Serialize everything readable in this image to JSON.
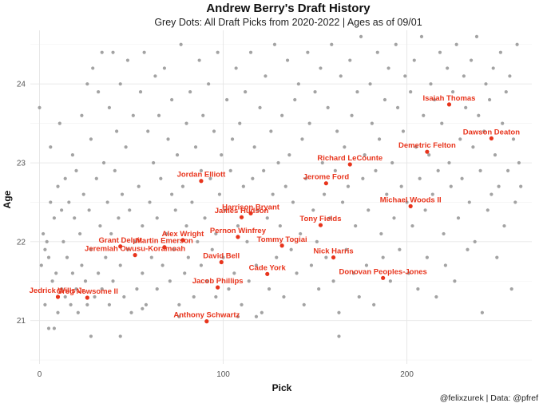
{
  "chart_data": {
    "type": "scatter",
    "title": "Andrew Berry's Draft History",
    "subtitle": "Grey Dots: All Draft Picks from 2020-2022 | Ages as of 09/01",
    "xlabel": "Pick",
    "ylabel": "Age",
    "caption": "@felixzurek | Data: @pfref",
    "xlim": [
      -5,
      268
    ],
    "ylim": [
      20.45,
      24.68
    ],
    "xticks": [
      0,
      100,
      200
    ],
    "yticks": [
      21,
      22,
      23,
      24
    ],
    "grid": true,
    "background_color": "#999999",
    "highlight_color": "#e8341c",
    "background_points": [
      [
        0,
        23.7
      ],
      [
        1,
        21.7
      ],
      [
        2,
        22.1
      ],
      [
        3,
        21.9
      ],
      [
        3,
        21.2
      ],
      [
        4,
        22
      ],
      [
        5,
        20.9
      ],
      [
        5,
        21.8
      ],
      [
        6,
        23.2
      ],
      [
        6,
        22.5
      ],
      [
        7,
        21.5
      ],
      [
        8,
        20.9
      ],
      [
        8,
        22.3
      ],
      [
        9,
        21.6
      ],
      [
        10,
        22.7
      ],
      [
        10,
        21.1
      ],
      [
        11,
        23.5
      ],
      [
        12,
        22.4
      ],
      [
        12,
        21.4
      ],
      [
        13,
        22
      ],
      [
        14,
        21.3
      ],
      [
        14,
        22.8
      ],
      [
        15,
        21.8
      ],
      [
        16,
        22.5
      ],
      [
        17,
        21.2
      ],
      [
        18,
        23.1
      ],
      [
        18,
        21.6
      ],
      [
        19,
        22.3
      ],
      [
        20,
        21.4
      ],
      [
        20,
        22.9
      ],
      [
        21,
        21.1
      ],
      [
        22,
        22.1
      ],
      [
        23,
        21.7
      ],
      [
        23,
        23.6
      ],
      [
        24,
        22.6
      ],
      [
        25,
        21.5
      ],
      [
        26,
        24
      ],
      [
        26,
        21.2
      ],
      [
        27,
        22.4
      ],
      [
        28,
        23.3
      ],
      [
        28,
        21.9
      ],
      [
        29,
        24.2
      ],
      [
        30,
        21.3
      ],
      [
        31,
        22.8
      ],
      [
        32,
        21.6
      ],
      [
        32,
        23.9
      ],
      [
        33,
        22.2
      ],
      [
        34,
        21.4
      ],
      [
        34,
        24.4
      ],
      [
        35,
        23
      ],
      [
        36,
        21.8
      ],
      [
        37,
        22.5
      ],
      [
        38,
        21.2
      ],
      [
        38,
        23.7
      ],
      [
        39,
        22.1
      ],
      [
        40,
        24.4
      ],
      [
        40,
        21.5
      ],
      [
        41,
        22.9
      ],
      [
        42,
        23.4
      ],
      [
        43,
        22.3
      ],
      [
        44,
        21.7
      ],
      [
        44,
        24
      ],
      [
        45,
        22.6
      ],
      [
        46,
        21.3
      ],
      [
        47,
        23.2
      ],
      [
        48,
        21.9
      ],
      [
        48,
        24.3
      ],
      [
        49,
        22.4
      ],
      [
        50,
        21.1
      ],
      [
        51,
        23.6
      ],
      [
        52,
        22
      ],
      [
        53,
        21.4
      ],
      [
        54,
        22.7
      ],
      [
        55,
        23.9
      ],
      [
        56,
        21.6
      ],
      [
        56,
        22.2
      ],
      [
        57,
        24.4
      ],
      [
        58,
        21.2
      ],
      [
        59,
        23.4
      ],
      [
        60,
        22.5
      ],
      [
        61,
        21.8
      ],
      [
        62,
        23
      ],
      [
        63,
        24.1
      ],
      [
        64,
        22.3
      ],
      [
        64,
        21.4
      ],
      [
        65,
        23.6
      ],
      [
        66,
        22.8
      ],
      [
        67,
        21.7
      ],
      [
        68,
        24.2
      ],
      [
        69,
        22.1
      ],
      [
        70,
        23.3
      ],
      [
        71,
        21.5
      ],
      [
        72,
        22.6
      ],
      [
        72,
        23.8
      ],
      [
        73,
        21.9
      ],
      [
        74,
        22.4
      ],
      [
        75,
        23.1
      ],
      [
        76,
        21.2
      ],
      [
        77,
        24.5
      ],
      [
        78,
        22.7
      ],
      [
        79,
        21.6
      ],
      [
        80,
        23.5
      ],
      [
        80,
        22.2
      ],
      [
        81,
        21.8
      ],
      [
        82,
        23.9
      ],
      [
        83,
        22.5
      ],
      [
        84,
        21.3
      ],
      [
        85,
        23.2
      ],
      [
        86,
        22
      ],
      [
        87,
        24.3
      ],
      [
        88,
        21.7
      ],
      [
        88,
        22.9
      ],
      [
        89,
        23.6
      ],
      [
        90,
        22.3
      ],
      [
        91,
        21.5
      ],
      [
        92,
        24
      ],
      [
        93,
        22.8
      ],
      [
        94,
        21.9
      ],
      [
        95,
        23.4
      ],
      [
        96,
        22.1
      ],
      [
        96,
        21.3
      ],
      [
        97,
        24.4
      ],
      [
        98,
        22.6
      ],
      [
        99,
        23.1
      ],
      [
        100,
        21.8
      ],
      [
        101,
        22.4
      ],
      [
        102,
        23.8
      ],
      [
        103,
        21.4
      ],
      [
        104,
        22.9
      ],
      [
        105,
        23.3
      ],
      [
        106,
        21.6
      ],
      [
        107,
        24.2
      ],
      [
        108,
        22.2
      ],
      [
        109,
        23.5
      ],
      [
        110,
        21.2
      ],
      [
        111,
        22.7
      ],
      [
        112,
        23.9
      ],
      [
        113,
        22
      ],
      [
        114,
        21.5
      ],
      [
        115,
        24.4
      ],
      [
        116,
        22.8
      ],
      [
        117,
        23.2
      ],
      [
        118,
        21.7
      ],
      [
        119,
        22.4
      ],
      [
        120,
        23.7
      ],
      [
        121,
        21.1
      ],
      [
        122,
        22.9
      ],
      [
        123,
        24.1
      ],
      [
        124,
        22.3
      ],
      [
        125,
        21.4
      ],
      [
        126,
        23.4
      ],
      [
        127,
        22.6
      ],
      [
        128,
        24.5
      ],
      [
        129,
        21.8
      ],
      [
        130,
        23
      ],
      [
        131,
        22.2
      ],
      [
        132,
        23.6
      ],
      [
        133,
        21.3
      ],
      [
        134,
        22.7
      ],
      [
        135,
        24.3
      ],
      [
        136,
        23.1
      ],
      [
        137,
        21.9
      ],
      [
        138,
        22.5
      ],
      [
        139,
        23.8
      ],
      [
        140,
        21.6
      ],
      [
        141,
        24
      ],
      [
        142,
        22.1
      ],
      [
        143,
        23.3
      ],
      [
        144,
        21.2
      ],
      [
        145,
        22.8
      ],
      [
        146,
        24.4
      ],
      [
        147,
        23.5
      ],
      [
        148,
        21.7
      ],
      [
        149,
        22.4
      ],
      [
        150,
        23.9
      ],
      [
        151,
        22
      ],
      [
        152,
        21.4
      ],
      [
        153,
        24.2
      ],
      [
        154,
        23
      ],
      [
        155,
        22.6
      ],
      [
        156,
        21.8
      ],
      [
        157,
        23.7
      ],
      [
        158,
        22.3
      ],
      [
        159,
        24.5
      ],
      [
        160,
        21.5
      ],
      [
        161,
        22.9
      ],
      [
        162,
        23.4
      ],
      [
        163,
        21.1
      ],
      [
        164,
        24.1
      ],
      [
        165,
        22.5
      ],
      [
        166,
        23.2
      ],
      [
        167,
        21.9
      ],
      [
        168,
        22.7
      ],
      [
        169,
        24.3
      ],
      [
        170,
        23.6
      ],
      [
        171,
        21.6
      ],
      [
        172,
        22.2
      ],
      [
        173,
        23.9
      ],
      [
        174,
        21.3
      ],
      [
        175,
        24.6
      ],
      [
        176,
        22.8
      ],
      [
        177,
        23.1
      ],
      [
        178,
        21.7
      ],
      [
        179,
        22.4
      ],
      [
        180,
        24
      ],
      [
        181,
        23.5
      ],
      [
        182,
        21.2
      ],
      [
        183,
        22.9
      ],
      [
        184,
        24.4
      ],
      [
        185,
        23.3
      ],
      [
        186,
        22.1
      ],
      [
        187,
        21.8
      ],
      [
        188,
        23.8
      ],
      [
        189,
        22.6
      ],
      [
        190,
        24.2
      ],
      [
        191,
        21.5
      ],
      [
        192,
        23
      ],
      [
        193,
        22.3
      ],
      [
        194,
        24.5
      ],
      [
        195,
        23.7
      ],
      [
        196,
        21.9
      ],
      [
        197,
        22.7
      ],
      [
        198,
        23.4
      ],
      [
        199,
        24.1
      ],
      [
        200,
        22.5
      ],
      [
        201,
        21.6
      ],
      [
        202,
        23.9
      ],
      [
        203,
        22.2
      ],
      [
        204,
        24.3
      ],
      [
        205,
        23.2
      ],
      [
        206,
        21.4
      ],
      [
        207,
        22.8
      ],
      [
        208,
        24.6
      ],
      [
        209,
        23.6
      ],
      [
        210,
        22.4
      ],
      [
        211,
        21.8
      ],
      [
        212,
        23.1
      ],
      [
        213,
        24
      ],
      [
        214,
        22.6
      ],
      [
        215,
        23.8
      ],
      [
        216,
        21.3
      ],
      [
        217,
        22.9
      ],
      [
        218,
        24.4
      ],
      [
        219,
        23.5
      ],
      [
        220,
        22.1
      ],
      [
        221,
        21.7
      ],
      [
        222,
        24.2
      ],
      [
        223,
        23
      ],
      [
        224,
        22.7
      ],
      [
        225,
        23.9
      ],
      [
        226,
        21.5
      ],
      [
        227,
        24.5
      ],
      [
        228,
        22.3
      ],
      [
        229,
        23.3
      ],
      [
        230,
        22.8
      ],
      [
        231,
        24.1
      ],
      [
        232,
        23.7
      ],
      [
        233,
        21.9
      ],
      [
        234,
        22.5
      ],
      [
        235,
        24.3
      ],
      [
        236,
        23.2
      ],
      [
        237,
        22
      ],
      [
        238,
        24.6
      ],
      [
        239,
        23.6
      ],
      [
        240,
        22.9
      ],
      [
        241,
        21.1
      ],
      [
        242,
        23.4
      ],
      [
        243,
        24
      ],
      [
        244,
        22.4
      ],
      [
        245,
        23.8
      ],
      [
        246,
        22.6
      ],
      [
        247,
        24.2
      ],
      [
        248,
        23.1
      ],
      [
        249,
        21.8
      ],
      [
        250,
        22.7
      ],
      [
        251,
        24.4
      ],
      [
        252,
        23.5
      ],
      [
        253,
        22.2
      ],
      [
        254,
        23.9
      ],
      [
        255,
        22.9
      ],
      [
        256,
        24.1
      ],
      [
        257,
        21.4
      ],
      [
        258,
        23.3
      ],
      [
        259,
        22.5
      ],
      [
        260,
        24.5
      ],
      [
        261,
        23
      ],
      [
        262,
        22.7
      ],
      [
        28,
        20.8
      ],
      [
        44,
        20.8
      ],
      [
        163,
        20.8
      ],
      [
        56,
        21.15
      ],
      [
        76,
        21.05
      ],
      [
        108,
        21.05
      ],
      [
        118,
        21.05
      ]
    ],
    "labeled_points": [
      {
        "name": "Isaiah Thomas",
        "x": 223,
        "y": 23.74
      },
      {
        "name": "Dawson Deaton",
        "x": 246,
        "y": 23.31
      },
      {
        "name": "Demetric Felton",
        "x": 211,
        "y": 23.14
      },
      {
        "name": "Richard LeCounte",
        "x": 169,
        "y": 22.98
      },
      {
        "name": "Jerome Ford",
        "x": 156,
        "y": 22.74
      },
      {
        "name": "Jordan Elliott",
        "x": 88,
        "y": 22.77
      },
      {
        "name": "Michael Woods II",
        "x": 202,
        "y": 22.45
      },
      {
        "name": "Harrison Bryant",
        "x": 115,
        "y": 22.36
      },
      {
        "name": "James Hudson",
        "x": 110,
        "y": 22.31
      },
      {
        "name": "Tony Fields",
        "x": 153,
        "y": 22.21
      },
      {
        "name": "Grant Delpit",
        "x": 44,
        "y": 21.94
      },
      {
        "name": "Alex Wright",
        "x": 78,
        "y": 22.02
      },
      {
        "name": "Pernon Winfrey",
        "x": 108,
        "y": 22.06
      },
      {
        "name": "Martin Emerson",
        "x": 68,
        "y": 21.93
      },
      {
        "name": "Tommy Togiai",
        "x": 132,
        "y": 21.95
      },
      {
        "name": "Jeremiah Owusu-Koramoah",
        "x": 52,
        "y": 21.83
      },
      {
        "name": "David Bell",
        "x": 99,
        "y": 21.74
      },
      {
        "name": "Nick Harris",
        "x": 160,
        "y": 21.8
      },
      {
        "name": "Cade York",
        "x": 124,
        "y": 21.59
      },
      {
        "name": "Donovan Peoples-Jones",
        "x": 187,
        "y": 21.54
      },
      {
        "name": "Jedrick Wills Jr.",
        "x": 10,
        "y": 21.3
      },
      {
        "name": "Jacob Phillips",
        "x": 97,
        "y": 21.42
      },
      {
        "name": "Greg Newsome II",
        "x": 26,
        "y": 21.29
      },
      {
        "name": "Anthony Schwartz",
        "x": 91,
        "y": 20.99
      }
    ]
  }
}
